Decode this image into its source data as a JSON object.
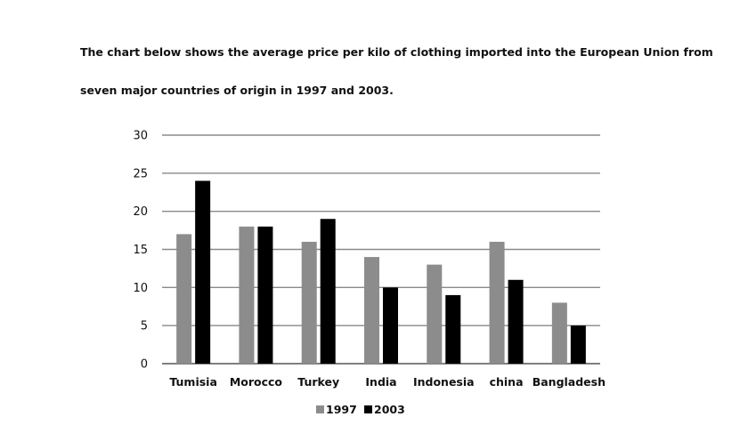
{
  "prompt": {
    "line1": "The chart below shows the average price per kilo of clothing imported into the European Union from",
    "line2": "seven major countries of origin in 1997 and 2003."
  },
  "chart_data": {
    "type": "bar",
    "title": "",
    "xlabel": "",
    "ylabel": "",
    "categories": [
      "Tumisia",
      "Morocco",
      "Turkey",
      "India",
      "Indonesia",
      "china",
      "Bangladesh"
    ],
    "series": [
      {
        "name": "1997",
        "color": "#8c8c8c",
        "values": [
          17,
          18,
          16,
          14,
          13,
          16,
          8
        ]
      },
      {
        "name": "2003",
        "color": "#000000",
        "values": [
          24,
          18,
          19,
          10,
          9,
          11,
          5
        ]
      }
    ],
    "ylim": [
      0,
      30
    ],
    "yticks": [
      0,
      5,
      10,
      15,
      20,
      25,
      30
    ],
    "grid": true,
    "legend": "bottom-center"
  }
}
